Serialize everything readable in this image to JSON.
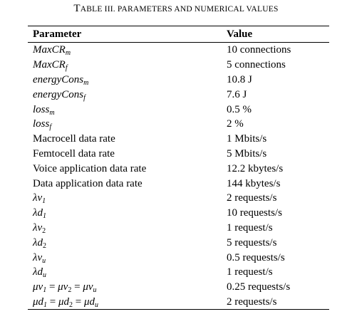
{
  "caption": {
    "prefix_initial": "T",
    "prefix_rest": "ABLE III. ",
    "rest": "PARAMETERS AND NUMERICAL VALUES"
  },
  "table": {
    "headers": [
      "Parameter",
      "Value"
    ],
    "rows": [
      {
        "parameter": [
          {
            "t": "MaxCR",
            "i": true
          },
          {
            "t": "m",
            "i": true,
            "sub": true
          }
        ],
        "value": "10 connections"
      },
      {
        "parameter": [
          {
            "t": "MaxCR",
            "i": true
          },
          {
            "t": "f",
            "i": true,
            "sub": true
          }
        ],
        "value": "5 connections"
      },
      {
        "parameter": [
          {
            "t": "energyCons",
            "i": true
          },
          {
            "t": "m",
            "i": true,
            "sub": true
          }
        ],
        "value": "10.8 J"
      },
      {
        "parameter": [
          {
            "t": "energyCons",
            "i": true
          },
          {
            "t": "f",
            "i": true,
            "sub": true
          }
        ],
        "value": "7.6 J"
      },
      {
        "parameter": [
          {
            "t": "loss",
            "i": true
          },
          {
            "t": "m",
            "i": true,
            "sub": true
          }
        ],
        "value": "0.5 %"
      },
      {
        "parameter": [
          {
            "t": "loss",
            "i": true
          },
          {
            "t": "f",
            "i": true,
            "sub": true
          }
        ],
        "value": "2 %"
      },
      {
        "parameter": [
          {
            "t": "Macrocell data rate"
          }
        ],
        "value": "1 Mbits/s"
      },
      {
        "parameter": [
          {
            "t": "Femtocell data rate"
          }
        ],
        "value": "5 Mbits/s"
      },
      {
        "parameter": [
          {
            "t": "Voice application data rate"
          }
        ],
        "value": "12.2 kbytes/s"
      },
      {
        "parameter": [
          {
            "t": "Data application data rate"
          }
        ],
        "value": "144 kbytes/s"
      },
      {
        "parameter": [
          {
            "t": "λv",
            "i": true
          },
          {
            "t": "1",
            "i": true,
            "sub": true
          }
        ],
        "value": "2 requests/s"
      },
      {
        "parameter": [
          {
            "t": "λd",
            "i": true
          },
          {
            "t": "1",
            "i": true,
            "sub": true
          }
        ],
        "value": "10 requests/s"
      },
      {
        "parameter": [
          {
            "t": "λv",
            "i": true
          },
          {
            "t": "2",
            "sub": true
          }
        ],
        "value": "1 request/s"
      },
      {
        "parameter": [
          {
            "t": "λd",
            "i": true
          },
          {
            "t": "2",
            "sub": true
          }
        ],
        "value": "5 requests/s"
      },
      {
        "parameter": [
          {
            "t": "λv",
            "i": true
          },
          {
            "t": "u",
            "i": true,
            "sub": true
          }
        ],
        "value": "0.5 requests/s"
      },
      {
        "parameter": [
          {
            "t": "λd",
            "i": true
          },
          {
            "t": "u",
            "i": true,
            "sub": true
          }
        ],
        "value": "1 request/s"
      },
      {
        "parameter": [
          {
            "t": "μv",
            "i": true
          },
          {
            "t": "1",
            "i": true,
            "sub": true
          },
          {
            "t": " = "
          },
          {
            "t": "μv",
            "i": true
          },
          {
            "t": "2",
            "sub": true
          },
          {
            "t": " = "
          },
          {
            "t": "μv",
            "i": true
          },
          {
            "t": "u",
            "i": true,
            "sub": true
          }
        ],
        "value": "0.25 requests/s"
      },
      {
        "parameter": [
          {
            "t": "μd",
            "i": true
          },
          {
            "t": "1",
            "i": true,
            "sub": true
          },
          {
            "t": " = "
          },
          {
            "t": "μd",
            "i": true
          },
          {
            "t": "2",
            "sub": true
          },
          {
            "t": " = "
          },
          {
            "t": "μd",
            "i": true
          },
          {
            "t": "u",
            "i": true,
            "sub": true
          }
        ],
        "value": "2 requests/s"
      }
    ]
  }
}
